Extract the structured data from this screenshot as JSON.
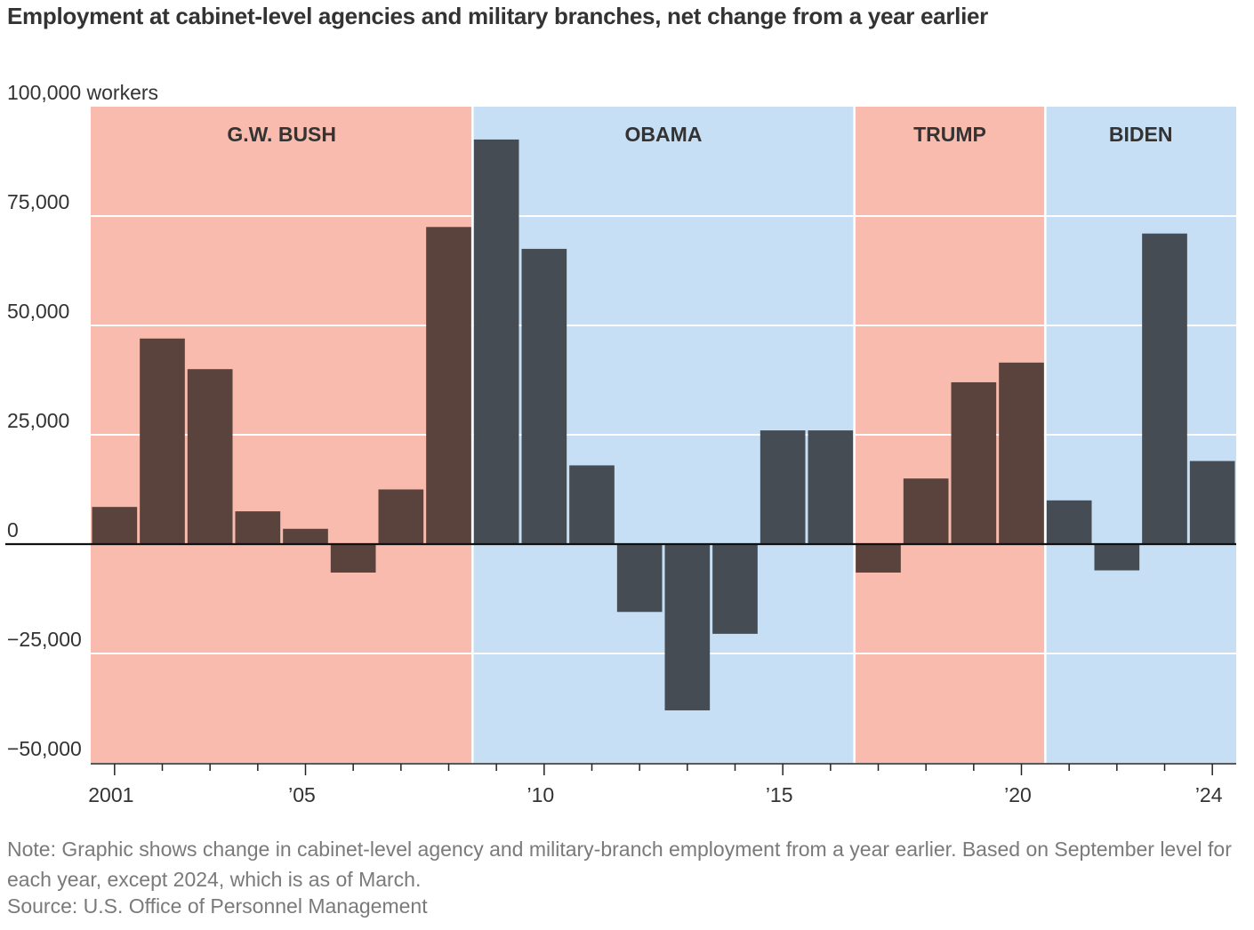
{
  "title": "Employment at cabinet-level agencies and military branches, net change from a year earlier",
  "note": "Note: Graphic shows change in cabinet-level agency and military-branch employment from a year earlier. Based on September level for each year, except 2024, which is as of March.",
  "source": "Source: U.S. Office of Personnel Management",
  "chart_data": {
    "type": "bar",
    "title": "Employment at cabinet-level agencies and military branches, net change from a year earlier",
    "ylabel": "workers",
    "ylim": [
      -50000,
      100000
    ],
    "yticks": [
      100000,
      75000,
      50000,
      25000,
      0,
      -25000,
      -50000
    ],
    "ytick_labels": [
      "100,000 workers",
      "75,000",
      "50,000",
      "25,000",
      "0",
      "−25,000",
      "−50,000"
    ],
    "xtick_labels": [
      {
        "year": 2001,
        "label": "2001"
      },
      {
        "year": 2005,
        "label": "’05"
      },
      {
        "year": 2010,
        "label": "’10"
      },
      {
        "year": 2015,
        "label": "’15"
      },
      {
        "year": 2020,
        "label": "’20"
      },
      {
        "year": 2024,
        "label": "’24"
      }
    ],
    "categories": [
      "2001",
      "2002",
      "2003",
      "2004",
      "2005",
      "2006",
      "2007",
      "2008",
      "2009",
      "2010",
      "2011",
      "2012",
      "2013",
      "2014",
      "2015",
      "2016",
      "2017",
      "2018",
      "2019",
      "2020",
      "2021",
      "2022",
      "2023",
      "2024"
    ],
    "values": [
      8500,
      47000,
      40000,
      7500,
      3500,
      -6500,
      12500,
      72500,
      92500,
      67500,
      18000,
      -15500,
      -38000,
      -20500,
      26000,
      26000,
      -6500,
      15000,
      37000,
      41500,
      10000,
      -6000,
      71000,
      19000
    ],
    "eras": [
      {
        "label": "G.W. BUSH",
        "start": 2001,
        "end": 2008,
        "party": "R"
      },
      {
        "label": "OBAMA",
        "start": 2009,
        "end": 2016,
        "party": "D"
      },
      {
        "label": "TRUMP",
        "start": 2017,
        "end": 2020,
        "party": "R"
      },
      {
        "label": "BIDEN",
        "start": 2021,
        "end": 2024,
        "party": "D"
      }
    ],
    "colors": {
      "R_background": "#f8bbad",
      "D_background": "#c6dff5",
      "R_bar": "#5a433d",
      "D_bar": "#454c54",
      "zero_line": "#111111",
      "grid": "#ffffff"
    },
    "grid": true,
    "legend": "none"
  }
}
